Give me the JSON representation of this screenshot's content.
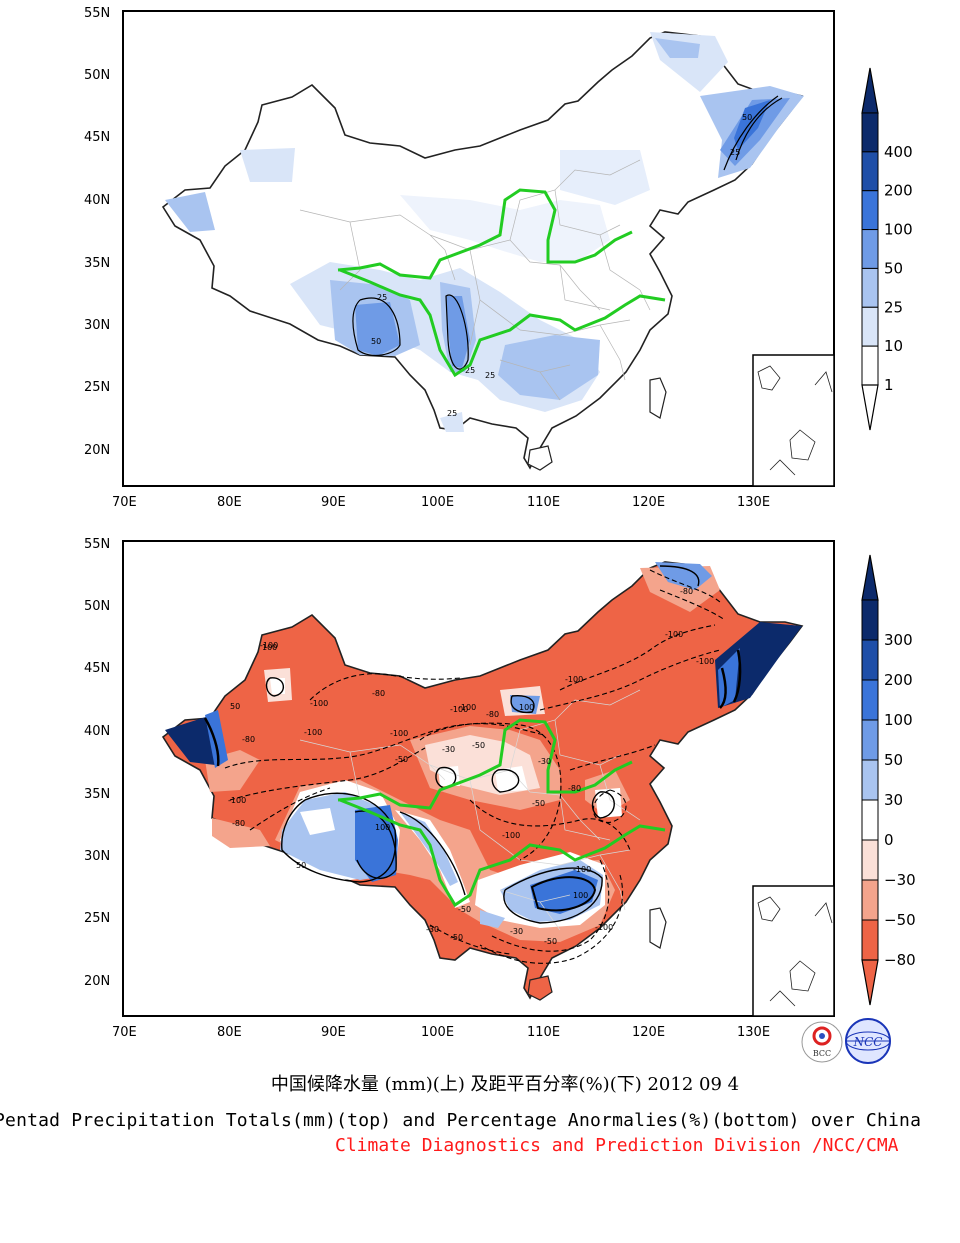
{
  "caption": {
    "chinese": "中国候降水量 (mm)(上) 及距平百分率(%)(下) 2012 09 4",
    "english": "Pentad Precipitation Totals(mm)(top) and Percentage Anormalies(%)(bottom) over China",
    "credit": "Climate Diagnostics and Prediction Division /NCC/CMA"
  },
  "logos": {
    "left": "BCC",
    "right": "NCC"
  },
  "maps": [
    {
      "id": "precipitation-totals",
      "lat_ticks": [
        "55N",
        "50N",
        "45N",
        "40N",
        "35N",
        "30N",
        "25N",
        "20N"
      ],
      "lon_ticks": [
        "70E",
        "80E",
        "90E",
        "100E",
        "110E",
        "120E",
        "130E"
      ],
      "colorbar": {
        "labels": [
          "400",
          "200",
          "100",
          "50",
          "25",
          "10",
          "1"
        ],
        "colors": [
          "#0c2a6b",
          "#1f4fa8",
          "#3a74d9",
          "#6f9be6",
          "#a9c4f0",
          "#d9e5f8",
          "#ffffff"
        ]
      },
      "contour_labels": [
        "25",
        "50",
        "25",
        "50",
        "25",
        "25",
        "25"
      ]
    },
    {
      "id": "percentage-anomalies",
      "lat_ticks": [
        "55N",
        "50N",
        "45N",
        "40N",
        "35N",
        "30N",
        "25N",
        "20N"
      ],
      "lon_ticks": [
        "70E",
        "80E",
        "90E",
        "100E",
        "110E",
        "120E",
        "130E"
      ],
      "colorbar": {
        "labels": [
          "300",
          "200",
          "100",
          "50",
          "30",
          "0",
          "−30",
          "−50",
          "−80"
        ],
        "colors": [
          "#0c2a6b",
          "#1f4fa8",
          "#3a74d9",
          "#6f9be6",
          "#a9c4f0",
          "#ffffff",
          "#fbe0d8",
          "#f4a48c",
          "#ee6446"
        ]
      },
      "contour_labels": [
        "-100",
        "-80",
        "-100",
        "-80",
        "-100",
        "-100",
        "-100",
        "-50",
        "-30",
        "-50",
        "100",
        "50",
        "100",
        "-80",
        "-100",
        "-30",
        "-50",
        "-100",
        "100",
        "-50",
        "-30",
        "-50",
        "-100",
        "-80",
        "-80",
        "-100",
        "-100",
        "-100",
        "-80",
        "-100",
        "50",
        "100",
        "-50",
        "-30",
        "-100"
      ]
    }
  ]
}
